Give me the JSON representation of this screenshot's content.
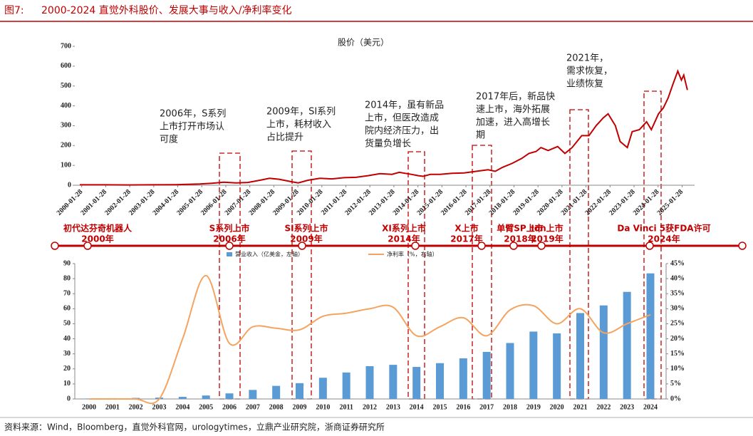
{
  "figure_label": "图7:",
  "title": "2000-2024 直觉外科股价、发展大事与收入/净利率变化",
  "source": "资料来源：Wind，Bloomberg，直觉外科官网，urologytimes，立鼎产业研究院，浙商证券研究所",
  "timeline": [
    {
      "label": "初代达芬奇机器人",
      "year": "2000年"
    },
    {
      "label": "S系列上市",
      "year": "2006年"
    },
    {
      "label": "SI系列上市",
      "year": "2009年"
    },
    {
      "label": "XI系列上市",
      "year": "2014年"
    },
    {
      "label": "X上市",
      "year": "2017年"
    },
    {
      "label": "单臂SP上市",
      "year": "2018年"
    },
    {
      "label": "Ion上市",
      "year": "2019年"
    },
    {
      "label": "Da Vinci 5获FDA许可",
      "year": "2024年"
    }
  ],
  "chart_data": [
    {
      "type": "line",
      "title": "股价（美元）",
      "x": [
        2000,
        2001,
        2002,
        2003,
        2004,
        2005,
        2005.5,
        2006,
        2006.5,
        2007,
        2007.5,
        2007.9,
        2008.3,
        2008.8,
        2009.1,
        2009.5,
        2010,
        2010.5,
        2011,
        2011.5,
        2012,
        2012.5,
        2013,
        2013.3,
        2013.8,
        2014.1,
        2014.3,
        2014.6,
        2015,
        2015.5,
        2016,
        2016.5,
        2017,
        2017.3,
        2017.6,
        2018,
        2018.4,
        2018.7,
        2019,
        2019.2,
        2019.5,
        2019.9,
        2020.2,
        2020.5,
        2020.9,
        2021.2,
        2021.5,
        2021.8,
        2022,
        2022.3,
        2022.5,
        2022.8,
        2023,
        2023.3,
        2023.6,
        2023.8,
        2024.1,
        2024.3,
        2024.5,
        2024.7,
        2024.9,
        2025.05,
        2025.15,
        2025.3
      ],
      "series": [
        {
          "color": "#c00000",
          "values": [
            2,
            2,
            1.5,
            2,
            3,
            6,
            10,
            15,
            12,
            14,
            25,
            35,
            30,
            18,
            12,
            25,
            35,
            32,
            38,
            40,
            48,
            58,
            55,
            65,
            55,
            48,
            45,
            55,
            55,
            60,
            62,
            70,
            78,
            70,
            90,
            110,
            135,
            160,
            170,
            190,
            175,
            195,
            160,
            190,
            250,
            250,
            300,
            340,
            360,
            300,
            220,
            190,
            270,
            280,
            320,
            280,
            360,
            390,
            440,
            510,
            575,
            530,
            555,
            480
          ]
        }
      ],
      "xlim": [
        2000,
        2025.6
      ],
      "xticks": [
        {
          "value": 2000.08,
          "label": "2000-01-28"
        },
        {
          "value": 2001.08,
          "label": "2001-01-28"
        },
        {
          "value": 2002.08,
          "label": "2002-01-28"
        },
        {
          "value": 2003.08,
          "label": "2003-01-28"
        },
        {
          "value": 2004.08,
          "label": "2004-01-28"
        },
        {
          "value": 2005.08,
          "label": "2005-01-28"
        },
        {
          "value": 2006.08,
          "label": "2006-01-28"
        },
        {
          "value": 2007.08,
          "label": "2007-01-28"
        },
        {
          "value": 2008.08,
          "label": "2008-01-28"
        },
        {
          "value": 2009.08,
          "label": "2009-01-28"
        },
        {
          "value": 2010.08,
          "label": "2010-01-28"
        },
        {
          "value": 2011.08,
          "label": "2011-01-28"
        },
        {
          "value": 2012.08,
          "label": "2012-01-28"
        },
        {
          "value": 2013.08,
          "label": "2013-01-28"
        },
        {
          "value": 2014.08,
          "label": "2014-01-28"
        },
        {
          "value": 2015.08,
          "label": "2015-01-28"
        },
        {
          "value": 2016.08,
          "label": "2016-01-28"
        },
        {
          "value": 2017.08,
          "label": "2017-01-28"
        },
        {
          "value": 2018.08,
          "label": "2018-01-28"
        },
        {
          "value": 2019.08,
          "label": "2019-01-28"
        },
        {
          "value": 2020.08,
          "label": "2020-01-28"
        },
        {
          "value": 2021.08,
          "label": "2021-01-28"
        },
        {
          "value": 2022.08,
          "label": "2022-01-28"
        },
        {
          "value": 2023.08,
          "label": "2023-01-28"
        },
        {
          "value": 2024.08,
          "label": "2024-01-28"
        },
        {
          "value": 2025.08,
          "label": "2025-01-28"
        }
      ],
      "ylim": [
        0,
        700
      ],
      "yticks": [
        0,
        100,
        200,
        300,
        400,
        500,
        600,
        700
      ],
      "annotations": [
        [
          "2006年，S系列",
          "上市打开市场认",
          "可度"
        ],
        [
          "2009年，SI系列",
          "上市，耗材收入",
          "占比提升"
        ],
        [
          "2014年，虽有新品",
          "上市，但医改造成",
          "院内经济压力，出",
          "货量负增长"
        ],
        [
          "2017年后，新品快",
          "速上市，海外拓展",
          "加速，进入高增长",
          "期"
        ],
        [
          "2021年，",
          "需求恢复，",
          "业绩恢复"
        ]
      ]
    },
    {
      "type": "bar",
      "categories": [
        "2000",
        "2001",
        "2002",
        "2003",
        "2004",
        "2005",
        "2006",
        "2007",
        "2008",
        "2009",
        "2010",
        "2011",
        "2012",
        "2013",
        "2014",
        "2015",
        "2016",
        "2017",
        "2018",
        "2019",
        "2020",
        "2021",
        "2022",
        "2023",
        "2024"
      ],
      "series": [
        {
          "name": "营业收入（亿美金，左轴）",
          "type": "bar",
          "color": "#5b9bd5",
          "values": [
            0.3,
            0.5,
            0.7,
            0.9,
            1.4,
            2.3,
            3.7,
            6.0,
            8.7,
            10.5,
            14.1,
            17.6,
            21.8,
            22.7,
            21.3,
            23.8,
            27.0,
            31.3,
            37.2,
            44.8,
            43.6,
            57.1,
            62.2,
            71.2,
            83.5
          ]
        },
        {
          "name": "净利率（%，右轴）",
          "type": "line",
          "axis": "y2",
          "color": "#f4a460",
          "values": [
            0,
            0,
            0,
            0,
            20,
            41,
            18.5,
            24,
            23.5,
            23,
            27.5,
            28.5,
            30,
            30.5,
            21,
            24,
            27,
            21,
            29.6,
            31,
            25,
            30,
            22,
            25,
            28
          ]
        }
      ],
      "ylim": [
        0,
        90
      ],
      "yticks": [
        0,
        10,
        20,
        30,
        40,
        50,
        60,
        70,
        80,
        90
      ],
      "y2lim": [
        0,
        45
      ],
      "y2ticks": [
        {
          "value": 0,
          "label": "0%"
        },
        {
          "value": 5,
          "label": "5%"
        },
        {
          "value": 10,
          "label": "10%"
        },
        {
          "value": 15,
          "label": "15%"
        },
        {
          "value": 20,
          "label": "20%"
        },
        {
          "value": 25,
          "label": "25%"
        },
        {
          "value": 30,
          "label": "30%"
        },
        {
          "value": 35,
          "label": "35%"
        },
        {
          "value": 40,
          "label": "40%"
        },
        {
          "value": 45,
          "label": "45%"
        }
      ]
    }
  ]
}
